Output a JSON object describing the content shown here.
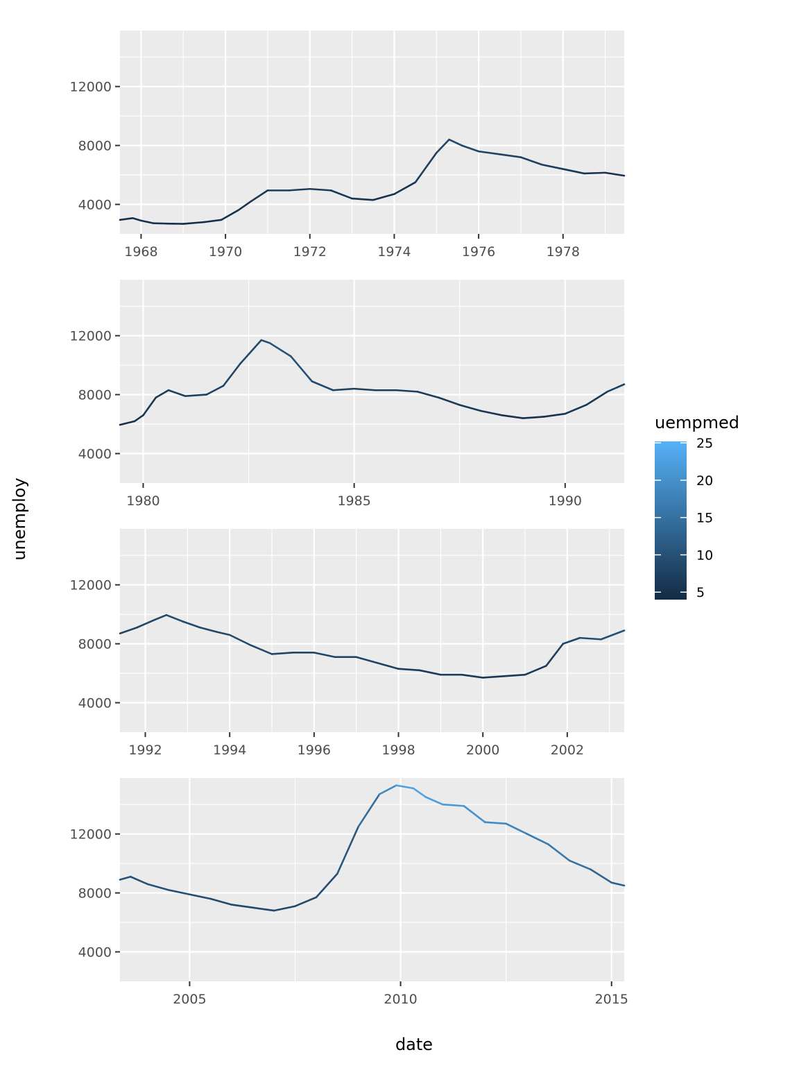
{
  "chart_data": {
    "type": "line",
    "xlabel": "date",
    "ylabel": "unemploy",
    "legend": {
      "title": "uempmed",
      "position": "right",
      "ticks": [
        5,
        10,
        15,
        20,
        25
      ],
      "range": [
        4,
        25.2
      ],
      "color_low": "#132B43",
      "color_high": "#56B1F7"
    },
    "colors": {
      "panel_bg": "#EBEBEB",
      "grid": "#FFFFFF",
      "tick_text": "#4D4D4D"
    },
    "panels": [
      {
        "xlim": [
          1967.5,
          1979.45
        ],
        "ylim": [
          2000,
          15800
        ],
        "y_ticks": [
          4000,
          8000,
          12000
        ],
        "x_ticks": [
          1968,
          1970,
          1972,
          1974,
          1976,
          1978
        ],
        "series": [
          {
            "x": 1967.5,
            "y": 2950,
            "c": 5
          },
          {
            "x": 1967.8,
            "y": 3070,
            "c": 5
          },
          {
            "x": 1968.0,
            "y": 2900,
            "c": 5
          },
          {
            "x": 1968.3,
            "y": 2720,
            "c": 5
          },
          {
            "x": 1968.6,
            "y": 2700,
            "c": 5
          },
          {
            "x": 1969.0,
            "y": 2680,
            "c": 4.5
          },
          {
            "x": 1969.5,
            "y": 2800,
            "c": 4.5
          },
          {
            "x": 1969.9,
            "y": 2950,
            "c": 4.5
          },
          {
            "x": 1970.3,
            "y": 3600,
            "c": 5
          },
          {
            "x": 1970.6,
            "y": 4200,
            "c": 6
          },
          {
            "x": 1971.0,
            "y": 4950,
            "c": 6.5
          },
          {
            "x": 1971.5,
            "y": 4950,
            "c": 7
          },
          {
            "x": 1972.0,
            "y": 5050,
            "c": 7
          },
          {
            "x": 1972.5,
            "y": 4950,
            "c": 6.5
          },
          {
            "x": 1973.0,
            "y": 4400,
            "c": 5.5
          },
          {
            "x": 1973.5,
            "y": 4300,
            "c": 5
          },
          {
            "x": 1974.0,
            "y": 4700,
            "c": 5
          },
          {
            "x": 1974.5,
            "y": 5500,
            "c": 6
          },
          {
            "x": 1975.0,
            "y": 7500,
            "c": 7.5
          },
          {
            "x": 1975.3,
            "y": 8400,
            "c": 8.5
          },
          {
            "x": 1975.6,
            "y": 8000,
            "c": 9
          },
          {
            "x": 1976.0,
            "y": 7600,
            "c": 8
          },
          {
            "x": 1976.5,
            "y": 7400,
            "c": 8
          },
          {
            "x": 1977.0,
            "y": 7200,
            "c": 7.5
          },
          {
            "x": 1977.5,
            "y": 6700,
            "c": 7
          },
          {
            "x": 1978.0,
            "y": 6400,
            "c": 6.5
          },
          {
            "x": 1978.5,
            "y": 6100,
            "c": 6
          },
          {
            "x": 1979.0,
            "y": 6150,
            "c": 5.5
          },
          {
            "x": 1979.45,
            "y": 5950,
            "c": 5
          }
        ]
      },
      {
        "xlim": [
          1979.45,
          1991.4
        ],
        "ylim": [
          2000,
          15800
        ],
        "y_ticks": [
          4000,
          8000,
          12000
        ],
        "x_ticks": [
          1980,
          1985,
          1990
        ],
        "series": [
          {
            "x": 1979.45,
            "y": 5950,
            "c": 5
          },
          {
            "x": 1979.8,
            "y": 6200,
            "c": 5
          },
          {
            "x": 1980.0,
            "y": 6600,
            "c": 5.5
          },
          {
            "x": 1980.3,
            "y": 7800,
            "c": 6
          },
          {
            "x": 1980.6,
            "y": 8300,
            "c": 7
          },
          {
            "x": 1981.0,
            "y": 7900,
            "c": 7.5
          },
          {
            "x": 1981.5,
            "y": 8000,
            "c": 7.5
          },
          {
            "x": 1981.9,
            "y": 8600,
            "c": 7.5
          },
          {
            "x": 1982.3,
            "y": 10100,
            "c": 8
          },
          {
            "x": 1982.8,
            "y": 11700,
            "c": 9
          },
          {
            "x": 1983.0,
            "y": 11500,
            "c": 10
          },
          {
            "x": 1983.5,
            "y": 10600,
            "c": 10.5
          },
          {
            "x": 1984.0,
            "y": 8900,
            "c": 9.5
          },
          {
            "x": 1984.5,
            "y": 8300,
            "c": 8
          },
          {
            "x": 1985.0,
            "y": 8400,
            "c": 7
          },
          {
            "x": 1985.5,
            "y": 8300,
            "c": 7
          },
          {
            "x": 1986.0,
            "y": 8300,
            "c": 7
          },
          {
            "x": 1986.5,
            "y": 8200,
            "c": 7
          },
          {
            "x": 1987.0,
            "y": 7800,
            "c": 6.5
          },
          {
            "x": 1987.5,
            "y": 7300,
            "c": 6.5
          },
          {
            "x": 1988.0,
            "y": 6900,
            "c": 6
          },
          {
            "x": 1988.5,
            "y": 6600,
            "c": 5.5
          },
          {
            "x": 1989.0,
            "y": 6400,
            "c": 5
          },
          {
            "x": 1989.5,
            "y": 6500,
            "c": 5
          },
          {
            "x": 1990.0,
            "y": 6700,
            "c": 5.5
          },
          {
            "x": 1990.5,
            "y": 7300,
            "c": 5.5
          },
          {
            "x": 1991.0,
            "y": 8200,
            "c": 7
          },
          {
            "x": 1991.4,
            "y": 8700,
            "c": 8
          }
        ]
      },
      {
        "xlim": [
          1991.4,
          2003.35
        ],
        "ylim": [
          2000,
          15800
        ],
        "y_ticks": [
          4000,
          8000,
          12000
        ],
        "x_ticks": [
          1992,
          1994,
          1996,
          1998,
          2000,
          2002
        ],
        "series": [
          {
            "x": 1991.4,
            "y": 8700,
            "c": 8
          },
          {
            "x": 1991.8,
            "y": 9100,
            "c": 8.5
          },
          {
            "x": 1992.2,
            "y": 9600,
            "c": 8.5
          },
          {
            "x": 1992.5,
            "y": 9950,
            "c": 9
          },
          {
            "x": 1992.9,
            "y": 9500,
            "c": 9
          },
          {
            "x": 1993.3,
            "y": 9100,
            "c": 8.5
          },
          {
            "x": 1993.7,
            "y": 8800,
            "c": 8.5
          },
          {
            "x": 1994.0,
            "y": 8600,
            "c": 9
          },
          {
            "x": 1994.5,
            "y": 7900,
            "c": 9
          },
          {
            "x": 1995.0,
            "y": 7300,
            "c": 8.5
          },
          {
            "x": 1995.5,
            "y": 7400,
            "c": 8
          },
          {
            "x": 1996.0,
            "y": 7400,
            "c": 8.5
          },
          {
            "x": 1996.5,
            "y": 7100,
            "c": 8
          },
          {
            "x": 1997.0,
            "y": 7100,
            "c": 8
          },
          {
            "x": 1997.5,
            "y": 6700,
            "c": 8
          },
          {
            "x": 1998.0,
            "y": 6300,
            "c": 7
          },
          {
            "x": 1998.5,
            "y": 6200,
            "c": 6.5
          },
          {
            "x": 1999.0,
            "y": 5900,
            "c": 6.5
          },
          {
            "x": 1999.5,
            "y": 5900,
            "c": 6.5
          },
          {
            "x": 2000.0,
            "y": 5700,
            "c": 6
          },
          {
            "x": 2000.5,
            "y": 5800,
            "c": 6
          },
          {
            "x": 2001.0,
            "y": 5900,
            "c": 6
          },
          {
            "x": 2001.5,
            "y": 6500,
            "c": 6.5
          },
          {
            "x": 2001.9,
            "y": 8000,
            "c": 7.5
          },
          {
            "x": 2002.3,
            "y": 8400,
            "c": 9
          },
          {
            "x": 2002.8,
            "y": 8300,
            "c": 9.5
          },
          {
            "x": 2003.35,
            "y": 8900,
            "c": 10
          }
        ]
      },
      {
        "xlim": [
          2003.35,
          2015.3
        ],
        "ylim": [
          2000,
          15800
        ],
        "y_ticks": [
          4000,
          8000,
          12000
        ],
        "x_ticks": [
          2005,
          2010,
          2015
        ],
        "series": [
          {
            "x": 2003.35,
            "y": 8900,
            "c": 10
          },
          {
            "x": 2003.6,
            "y": 9100,
            "c": 10
          },
          {
            "x": 2004.0,
            "y": 8600,
            "c": 10
          },
          {
            "x": 2004.5,
            "y": 8200,
            "c": 10
          },
          {
            "x": 2005.0,
            "y": 7900,
            "c": 9.5
          },
          {
            "x": 2005.5,
            "y": 7600,
            "c": 9
          },
          {
            "x": 2006.0,
            "y": 7200,
            "c": 8.5
          },
          {
            "x": 2006.5,
            "y": 7000,
            "c": 8.5
          },
          {
            "x": 2007.0,
            "y": 6800,
            "c": 8.5
          },
          {
            "x": 2007.5,
            "y": 7100,
            "c": 8.5
          },
          {
            "x": 2008.0,
            "y": 7700,
            "c": 9
          },
          {
            "x": 2008.5,
            "y": 9300,
            "c": 9.5
          },
          {
            "x": 2009.0,
            "y": 12500,
            "c": 12
          },
          {
            "x": 2009.5,
            "y": 14700,
            "c": 17
          },
          {
            "x": 2009.9,
            "y": 15300,
            "c": 21
          },
          {
            "x": 2010.3,
            "y": 15100,
            "c": 24
          },
          {
            "x": 2010.6,
            "y": 14500,
            "c": 22
          },
          {
            "x": 2011.0,
            "y": 14000,
            "c": 22
          },
          {
            "x": 2011.5,
            "y": 13900,
            "c": 21
          },
          {
            "x": 2012.0,
            "y": 12800,
            "c": 19.5
          },
          {
            "x": 2012.5,
            "y": 12700,
            "c": 19
          },
          {
            "x": 2013.0,
            "y": 12000,
            "c": 17
          },
          {
            "x": 2013.5,
            "y": 11300,
            "c": 16.5
          },
          {
            "x": 2014.0,
            "y": 10200,
            "c": 16
          },
          {
            "x": 2014.5,
            "y": 9600,
            "c": 14
          },
          {
            "x": 2015.0,
            "y": 8700,
            "c": 12.5
          },
          {
            "x": 2015.3,
            "y": 8500,
            "c": 11.5
          }
        ]
      }
    ]
  }
}
